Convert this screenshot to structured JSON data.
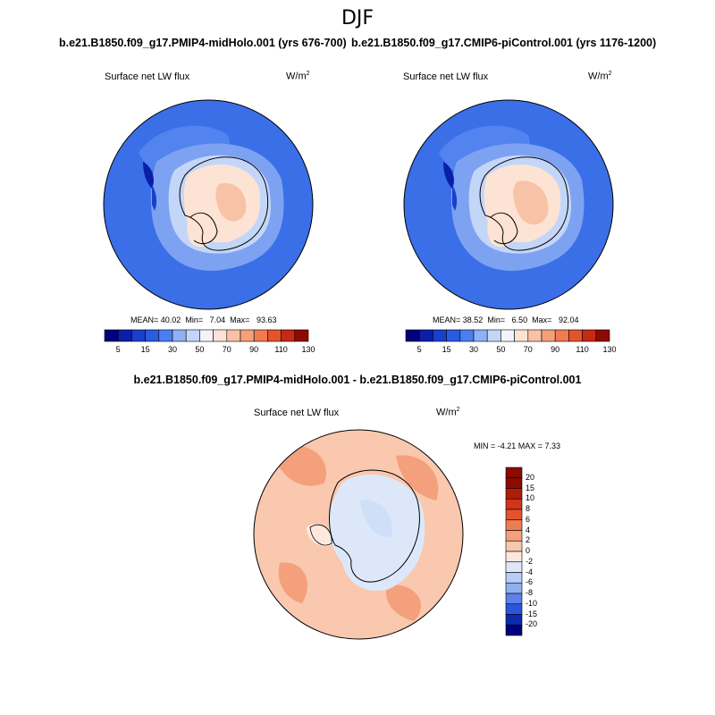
{
  "main_title": "DJF",
  "panels": [
    {
      "title": "b.e21.B1850.f09_g17.PMIP4-midHolo.001 (yrs 676-700)",
      "variable": "Surface net LW flux",
      "units": "W/m",
      "units_sup": "2",
      "stats_mean_label": "MEAN=",
      "stats_mean": "40.02",
      "stats_min_label": "Min=",
      "stats_min": "7.04",
      "stats_max_label": "Max=",
      "stats_max": "93.63",
      "colorbar_ticks": [
        "5",
        "15",
        "30",
        "50",
        "70",
        "90",
        "110",
        "130"
      ]
    },
    {
      "title": "b.e21.B1850.f09_g17.CMIP6-piControl.001 (yrs 1176-1200)",
      "variable": "Surface net LW flux",
      "units": "W/m",
      "units_sup": "2",
      "stats_mean_label": "MEAN=",
      "stats_mean": "38.52",
      "stats_min_label": "Min=",
      "stats_min": "6.50",
      "stats_max_label": "Max=",
      "stats_max": "92.04",
      "colorbar_ticks": [
        "5",
        "15",
        "30",
        "50",
        "70",
        "90",
        "110",
        "130"
      ]
    }
  ],
  "diff_panel": {
    "title": "b.e21.B1850.f09_g17.PMIP4-midHolo.001 - b.e21.B1850.f09_g17.CMIP6-piControl.001",
    "variable": "Surface net LW flux",
    "units": "W/m",
    "units_sup": "2",
    "stats": "MIN =  -4.21 MAX =   7.33",
    "colorbar_ticks": [
      "20",
      "15",
      "10",
      "8",
      "6",
      "4",
      "2",
      "0",
      "-2",
      "-4",
      "-6",
      "-8",
      "-10",
      "-15",
      "-20"
    ]
  },
  "colors": {
    "abs_scale": [
      "#00007f",
      "#0a1ea8",
      "#1a3fcc",
      "#2a5be0",
      "#4a7ff0",
      "#8fb0f5",
      "#c4d6f8",
      "#f2f4fa",
      "#fce3d4",
      "#f8c2a6",
      "#f4a07c",
      "#ee7c52",
      "#e4542c",
      "#c42a14",
      "#8c0a00"
    ],
    "diff_scale": [
      "#8c0a00",
      "#b01c0a",
      "#d0341a",
      "#e4542c",
      "#ee7c52",
      "#f4a07c",
      "#f8c8ae",
      "#fce8dc",
      "#dce8fa",
      "#b7cdf5",
      "#8fb0f0",
      "#5a82e8",
      "#2a55dc",
      "#0c2ab0",
      "#00007f"
    ],
    "ocean_abs": "#3a6fe8",
    "diff_background": "#f9c8ae"
  }
}
